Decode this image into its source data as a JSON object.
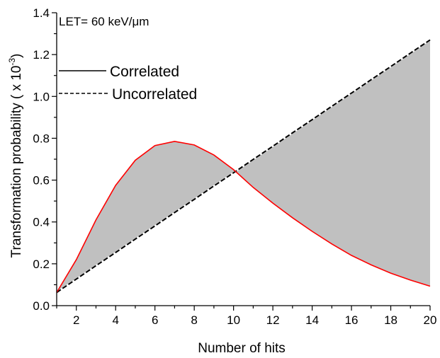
{
  "chart_data": {
    "type": "line",
    "annotation": "LET= 60 keV/μm",
    "xlabel": "Number of hits",
    "ylabel_main": "Transformation probability ( x 10",
    "ylabel_exp": "-3",
    "ylabel_close": ")",
    "xlim": [
      1,
      20
    ],
    "ylim": [
      0,
      1.4
    ],
    "xticks": [
      2,
      4,
      6,
      8,
      10,
      12,
      14,
      16,
      18,
      20
    ],
    "yticks": [
      "0.0",
      "0.2",
      "0.4",
      "0.6",
      "0.8",
      "1.0",
      "1.2",
      "1.4"
    ],
    "ytick_values": [
      0,
      0.2,
      0.4,
      0.6,
      0.8,
      1.0,
      1.2,
      1.4
    ],
    "x": [
      1,
      2,
      3,
      4,
      5,
      6,
      7,
      8,
      9,
      10,
      11,
      12,
      13,
      14,
      15,
      16,
      17,
      18,
      19,
      20
    ],
    "series": [
      {
        "name": "Correlated",
        "color": "#ff0000",
        "values": [
          0.063,
          0.22,
          0.41,
          0.575,
          0.695,
          0.765,
          0.785,
          0.768,
          0.72,
          0.65,
          0.565,
          0.49,
          0.42,
          0.355,
          0.295,
          0.24,
          0.195,
          0.155,
          0.122,
          0.093
        ]
      },
      {
        "name": "Uncorrelated",
        "color": "#000000",
        "values": [
          0.063,
          0.127,
          0.191,
          0.254,
          0.318,
          0.381,
          0.445,
          0.508,
          0.572,
          0.635,
          0.699,
          0.762,
          0.826,
          0.889,
          0.953,
          1.016,
          1.08,
          1.143,
          1.207,
          1.27
        ]
      }
    ],
    "fill_color": "#c0c0c0",
    "legend": {
      "placement": "top-left",
      "items": [
        {
          "label": "Correlated",
          "style": "solid"
        },
        {
          "label": "Uncorrelated",
          "style": "dashed"
        }
      ]
    },
    "grid": false
  }
}
